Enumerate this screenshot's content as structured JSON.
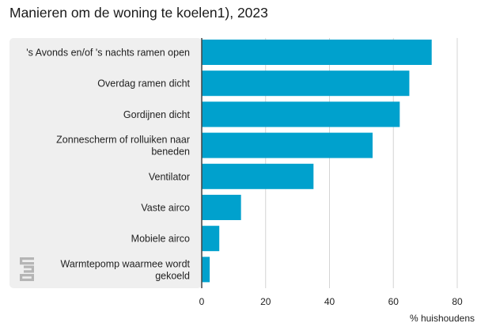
{
  "chart_data": {
    "type": "bar",
    "orientation": "horizontal",
    "title": "Manieren om de woning te koelen1), 2023",
    "xlabel": "% huishoudens",
    "ylabel": "",
    "xlim": [
      0,
      80
    ],
    "xticks": [
      0,
      20,
      40,
      60,
      80
    ],
    "grid": true,
    "bar_color": "#00a1cd",
    "label_panel_color": "#efefef",
    "series": [
      {
        "name": "% huishoudens",
        "values": [
          72,
          65,
          62,
          53.5,
          35,
          12.3,
          5.5,
          2.5
        ]
      }
    ],
    "categories": [
      [
        "'s Avonds en/of 's nachts ramen open"
      ],
      [
        "Overdag ramen dicht"
      ],
      [
        "Gordijnen dicht"
      ],
      [
        "Zonnescherm of rolluiken naar",
        "beneden"
      ],
      [
        "Ventilator"
      ],
      [
        "Vaste airco"
      ],
      [
        "Mobiele airco"
      ],
      [
        "Warmtepomp waarmee wordt",
        "gekoeld"
      ]
    ],
    "logo": "cbs"
  }
}
